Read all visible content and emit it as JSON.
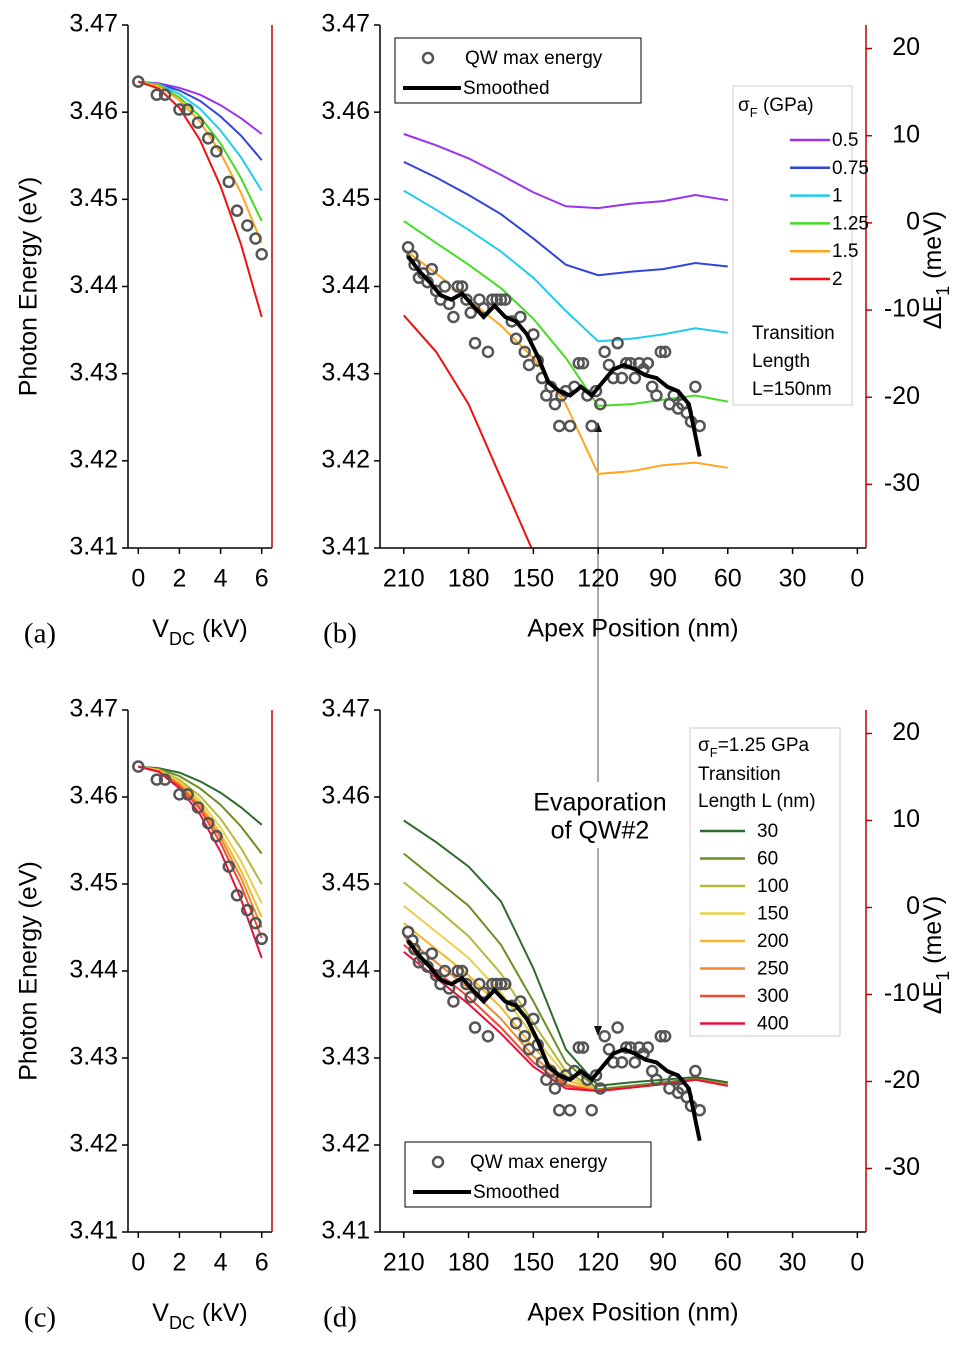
{
  "chart_data": [
    {
      "type": "line",
      "panel_label": "(a)",
      "y_label": "Photon Energy (eV)",
      "x_label": [
        "V",
        "DC",
        " (kV)"
      ],
      "xlim": [
        -0.5,
        6.5
      ],
      "xticks": [
        0,
        2,
        4,
        6
      ],
      "ylim": [
        3.41,
        3.47
      ],
      "yticks": [
        3.41,
        3.42,
        3.43,
        3.44,
        3.45,
        3.46,
        3.47
      ],
      "x": [
        0,
        1,
        2,
        3,
        4,
        5,
        6
      ],
      "series": [
        {
          "color": "#9933ee",
          "values": [
            3.4635,
            3.4633,
            3.4628,
            3.462,
            3.4608,
            3.4593,
            3.4575
          ]
        },
        {
          "color": "#3344dd",
          "values": [
            3.4635,
            3.4632,
            3.4625,
            3.4613,
            3.4595,
            3.4573,
            3.4545
          ]
        },
        {
          "color": "#22ccee",
          "values": [
            3.4635,
            3.4632,
            3.4621,
            3.4604,
            3.4579,
            3.4548,
            3.451
          ]
        },
        {
          "color": "#44dd22",
          "values": [
            3.4635,
            3.4631,
            3.4617,
            3.4595,
            3.4564,
            3.4524,
            3.4475
          ]
        },
        {
          "color": "#ffa520",
          "values": [
            3.4635,
            3.463,
            3.4614,
            3.4589,
            3.4553,
            3.4507,
            3.445
          ]
        },
        {
          "color": "#ee1111",
          "values": [
            3.4635,
            3.4627,
            3.4605,
            3.4568,
            3.4515,
            3.4448,
            3.4365
          ]
        }
      ],
      "markers": {
        "color": "#555555",
        "x": [
          0,
          0.9,
          1.3,
          2,
          2.4,
          2.9,
          3.4,
          3.8,
          4.4,
          4.8,
          5.3,
          5.7,
          6.0
        ],
        "values": [
          3.4635,
          3.462,
          3.462,
          3.4603,
          3.4603,
          3.4588,
          3.457,
          3.4555,
          3.452,
          3.4487,
          3.447,
          3.4455,
          3.4437
        ]
      }
    },
    {
      "type": "line",
      "panel_label": "(b)",
      "x_label": "Apex Position (nm)",
      "y2_label": [
        "ΔE",
        "1",
        " (meV)"
      ],
      "xlim": [
        221,
        -4
      ],
      "xticks": [
        210,
        180,
        150,
        120,
        90,
        60,
        30,
        0
      ],
      "ylim": [
        3.41,
        3.47
      ],
      "yticks": [
        3.41,
        3.42,
        3.43,
        3.44,
        3.45,
        3.46,
        3.47
      ],
      "y2lim": [
        -37.3,
        22.7
      ],
      "y2ticks": [
        -30,
        -20,
        -10,
        0,
        10,
        20
      ],
      "legend_title": [
        "σ",
        "F",
        " (GPa)"
      ],
      "legend_note": [
        "Transition",
        "Length",
        "L=150nm"
      ],
      "x": [
        210,
        195,
        180,
        165,
        150,
        135,
        120,
        105,
        90,
        75,
        60
      ],
      "series": [
        {
          "name": "0.5",
          "color": "#9933ee",
          "values": [
            3.4575,
            3.4562,
            3.4547,
            3.4528,
            3.4508,
            3.4492,
            3.449,
            3.4495,
            3.4498,
            3.4505,
            3.4499
          ]
        },
        {
          "name": "0.75",
          "color": "#3344dd",
          "values": [
            3.4543,
            3.4525,
            3.4505,
            3.4483,
            3.4455,
            3.4425,
            3.4413,
            3.4417,
            3.442,
            3.4427,
            3.4423
          ]
        },
        {
          "name": "1",
          "color": "#22ccee",
          "values": [
            3.451,
            3.4488,
            3.4465,
            3.444,
            3.441,
            3.4372,
            3.4337,
            3.434,
            3.4345,
            3.4352,
            3.4347
          ]
        },
        {
          "name": "1.25",
          "color": "#44dd22",
          "values": [
            3.4475,
            3.445,
            3.4425,
            3.4398,
            3.4363,
            3.4318,
            3.4263,
            3.4265,
            3.427,
            3.4275,
            3.4268
          ]
        },
        {
          "name": "1.5",
          "color": "#ffa520",
          "values": [
            3.4443,
            3.4415,
            3.4385,
            3.4355,
            3.4318,
            3.4265,
            3.4185,
            3.4188,
            3.4195,
            3.4198,
            3.4192
          ]
        },
        {
          "name": "2",
          "color": "#ee1111",
          "values": [
            3.4367,
            3.4325,
            3.4265,
            3.418,
            3.4095,
            null,
            null,
            null,
            null,
            null,
            null
          ]
        }
      ],
      "markers": {
        "name": "QW max energy",
        "color": "#555555",
        "x": [
          208,
          206,
          205,
          203,
          201,
          199,
          197,
          195,
          193,
          191,
          189,
          187,
          185,
          183,
          181,
          179,
          177,
          175,
          173,
          171,
          169,
          167,
          165,
          163,
          160,
          158,
          156,
          154,
          152,
          150,
          148,
          146,
          144,
          142,
          140,
          138,
          137,
          135,
          133,
          131,
          129,
          127,
          125,
          123,
          121,
          119,
          117,
          115,
          113,
          111,
          109,
          107,
          105,
          103,
          101,
          99,
          97,
          95,
          93,
          91,
          89,
          87,
          85,
          83,
          81,
          79,
          77,
          75,
          73
        ],
        "values": [
          3.4445,
          3.4435,
          3.4425,
          3.441,
          3.4415,
          3.4405,
          3.442,
          3.4395,
          3.4385,
          3.44,
          3.438,
          3.4365,
          3.44,
          3.44,
          3.4385,
          3.437,
          3.4335,
          3.4385,
          3.4375,
          3.4325,
          3.4385,
          3.4385,
          3.4385,
          3.4385,
          3.436,
          3.434,
          3.4365,
          3.4325,
          3.431,
          3.4345,
          3.4315,
          3.4295,
          3.4275,
          3.4285,
          3.4265,
          3.424,
          3.4275,
          3.428,
          3.424,
          3.4285,
          3.4312,
          3.4312,
          3.4275,
          3.424,
          3.428,
          3.4265,
          3.4325,
          3.431,
          3.4295,
          3.4335,
          3.4295,
          3.4312,
          3.4312,
          3.4295,
          3.4312,
          3.4305,
          3.4312,
          3.4285,
          3.4275,
          3.4325,
          3.4325,
          3.4265,
          3.4275,
          3.426,
          3.4265,
          3.4255,
          3.4245,
          3.4285,
          3.424
        ]
      },
      "smoothed": {
        "name": "Smoothed",
        "color": "#000000",
        "x": [
          208,
          203,
          198,
          193,
          188,
          183,
          178,
          173,
          168,
          163,
          158,
          153,
          148,
          143,
          138,
          133,
          128,
          123,
          118,
          113,
          108,
          103,
          98,
          93,
          88,
          83,
          78,
          73
        ],
        "values": [
          3.4435,
          3.4418,
          3.4405,
          3.439,
          3.4385,
          3.4392,
          3.4378,
          3.4365,
          3.4378,
          3.4365,
          3.436,
          3.4345,
          3.432,
          3.429,
          3.428,
          3.4275,
          3.4285,
          3.4275,
          3.429,
          3.4305,
          3.431,
          3.4305,
          3.4298,
          3.4295,
          3.4285,
          3.428,
          3.4265,
          3.4205
        ]
      }
    },
    {
      "type": "line",
      "panel_label": "(c)",
      "y_label": "Photon Energy (eV)",
      "x_label": [
        "V",
        "DC",
        " (kV)"
      ],
      "xlim": [
        -0.5,
        6.5
      ],
      "xticks": [
        0,
        2,
        4,
        6
      ],
      "ylim": [
        3.41,
        3.47
      ],
      "yticks": [
        3.41,
        3.42,
        3.43,
        3.44,
        3.45,
        3.46,
        3.47
      ],
      "x": [
        0,
        1,
        2,
        3,
        4,
        5,
        6
      ],
      "series": [
        {
          "color": "#2e6b2e",
          "values": [
            3.4635,
            3.4633,
            3.4628,
            3.4618,
            3.4605,
            3.4588,
            3.4568
          ]
        },
        {
          "color": "#6b8e23",
          "values": [
            3.4635,
            3.4632,
            3.4624,
            3.461,
            3.4591,
            3.4566,
            3.4535
          ]
        },
        {
          "color": "#b5b83a",
          "values": [
            3.4635,
            3.4631,
            3.462,
            3.4601,
            3.4575,
            3.4541,
            3.45
          ]
        },
        {
          "color": "#e8d04a",
          "values": [
            3.4635,
            3.4631,
            3.4618,
            3.4596,
            3.4565,
            3.4526,
            3.4478
          ]
        },
        {
          "color": "#f5b72e",
          "values": [
            3.4635,
            3.463,
            3.4616,
            3.4592,
            3.4558,
            3.4515,
            3.4462
          ]
        },
        {
          "color": "#f08a30",
          "values": [
            3.4635,
            3.463,
            3.4614,
            3.4589,
            3.4553,
            3.4507,
            3.445
          ]
        },
        {
          "color": "#f04a30",
          "values": [
            3.4635,
            3.4629,
            3.4613,
            3.4586,
            3.4547,
            3.4498,
            3.4438
          ]
        },
        {
          "color": "#e8103a",
          "values": [
            3.4635,
            3.4629,
            3.461,
            3.458,
            3.4537,
            3.4482,
            3.4415
          ]
        }
      ],
      "markers": {
        "color": "#555555",
        "x": [
          0,
          0.9,
          1.3,
          2,
          2.4,
          2.9,
          3.4,
          3.8,
          4.4,
          4.8,
          5.3,
          5.7,
          6.0
        ],
        "values": [
          3.4635,
          3.462,
          3.462,
          3.4603,
          3.4603,
          3.4588,
          3.457,
          3.4555,
          3.452,
          3.4487,
          3.447,
          3.4455,
          3.4437
        ]
      }
    },
    {
      "type": "line",
      "panel_label": "(d)",
      "x_label": "Apex Position (nm)",
      "y2_label": [
        "ΔE",
        "1",
        " (meV)"
      ],
      "annotation": [
        "Evaporation",
        "of QW#2"
      ],
      "xlim": [
        221,
        -4
      ],
      "xticks": [
        210,
        180,
        150,
        120,
        90,
        60,
        30,
        0
      ],
      "ylim": [
        3.41,
        3.47
      ],
      "yticks": [
        3.41,
        3.42,
        3.43,
        3.44,
        3.45,
        3.46,
        3.47
      ],
      "y2lim": [
        -37.3,
        22.7
      ],
      "y2ticks": [
        -30,
        -20,
        -10,
        0,
        10,
        20
      ],
      "legend_title": [
        "σ",
        "F",
        "=1.25 GPa"
      ],
      "legend_note": [
        "Transition",
        "Length L (nm)"
      ],
      "x": [
        210,
        195,
        180,
        165,
        150,
        135,
        120,
        105,
        90,
        75,
        60
      ],
      "series": [
        {
          "name": "30",
          "color": "#2e6b2e",
          "values": [
            3.4573,
            3.4548,
            3.452,
            3.448,
            3.4403,
            3.431,
            3.4268,
            3.4272,
            3.4275,
            3.4278,
            3.4272
          ]
        },
        {
          "name": "60",
          "color": "#6b8e23",
          "values": [
            3.4535,
            3.4505,
            3.4475,
            3.443,
            3.4365,
            3.4295,
            3.4264,
            3.4268,
            3.4272,
            3.4276,
            3.427
          ]
        },
        {
          "name": "100",
          "color": "#b5b83a",
          "values": [
            3.4502,
            3.4472,
            3.444,
            3.4397,
            3.434,
            3.4285,
            3.4262,
            3.4266,
            3.427,
            3.4275,
            3.4269
          ]
        },
        {
          "name": "150",
          "color": "#e8d04a",
          "values": [
            3.4475,
            3.4445,
            3.4415,
            3.4375,
            3.4325,
            3.428,
            3.4262,
            3.4266,
            3.427,
            3.4275,
            3.4268
          ]
        },
        {
          "name": "200",
          "color": "#f5b72e",
          "values": [
            3.4455,
            3.4425,
            3.4395,
            3.4358,
            3.4312,
            3.4275,
            3.4262,
            3.4266,
            3.427,
            3.4275,
            3.4268
          ]
        },
        {
          "name": "250",
          "color": "#f08a30",
          "values": [
            3.444,
            3.441,
            3.438,
            3.4345,
            3.4302,
            3.427,
            3.4262,
            3.4266,
            3.427,
            3.4275,
            3.4268
          ]
        },
        {
          "name": "300",
          "color": "#f04a30",
          "values": [
            3.443,
            3.44,
            3.437,
            3.4335,
            3.4295,
            3.4268,
            3.4262,
            3.4266,
            3.427,
            3.4275,
            3.4268
          ]
        },
        {
          "name": "400",
          "color": "#e8103a",
          "values": [
            3.4422,
            3.4392,
            3.4362,
            3.4328,
            3.429,
            3.4265,
            3.4262,
            3.4266,
            3.427,
            3.4275,
            3.4268
          ]
        }
      ],
      "markers": {
        "name": "QW max energy",
        "color": "#555555",
        "x": [
          208,
          206,
          205,
          203,
          201,
          199,
          197,
          195,
          193,
          191,
          189,
          187,
          185,
          183,
          181,
          179,
          177,
          175,
          173,
          171,
          169,
          167,
          165,
          163,
          160,
          158,
          156,
          154,
          152,
          150,
          148,
          146,
          144,
          142,
          140,
          138,
          137,
          135,
          133,
          131,
          129,
          127,
          125,
          123,
          121,
          119,
          117,
          115,
          113,
          111,
          109,
          107,
          105,
          103,
          101,
          99,
          97,
          95,
          93,
          91,
          89,
          87,
          85,
          83,
          81,
          79,
          77,
          75,
          73
        ],
        "values": [
          3.4445,
          3.4435,
          3.4425,
          3.441,
          3.4415,
          3.4405,
          3.442,
          3.4395,
          3.4385,
          3.44,
          3.438,
          3.4365,
          3.44,
          3.44,
          3.4385,
          3.437,
          3.4335,
          3.4385,
          3.4375,
          3.4325,
          3.4385,
          3.4385,
          3.4385,
          3.4385,
          3.436,
          3.434,
          3.4365,
          3.4325,
          3.431,
          3.4345,
          3.4315,
          3.4295,
          3.4275,
          3.4285,
          3.4265,
          3.424,
          3.4275,
          3.428,
          3.424,
          3.4285,
          3.4312,
          3.4312,
          3.4275,
          3.424,
          3.428,
          3.4265,
          3.4325,
          3.431,
          3.4295,
          3.4335,
          3.4295,
          3.4312,
          3.4312,
          3.4295,
          3.4312,
          3.4305,
          3.4312,
          3.4285,
          3.4275,
          3.4325,
          3.4325,
          3.4265,
          3.4275,
          3.426,
          3.4265,
          3.4255,
          3.4245,
          3.4285,
          3.424
        ]
      },
      "smoothed": {
        "name": "Smoothed",
        "color": "#000000",
        "x": [
          208,
          203,
          198,
          193,
          188,
          183,
          178,
          173,
          168,
          163,
          158,
          153,
          148,
          143,
          138,
          133,
          128,
          123,
          118,
          113,
          108,
          103,
          98,
          93,
          88,
          83,
          78,
          73
        ],
        "values": [
          3.4435,
          3.4418,
          3.4405,
          3.439,
          3.4385,
          3.4392,
          3.4378,
          3.4365,
          3.4378,
          3.4365,
          3.436,
          3.4345,
          3.432,
          3.429,
          3.428,
          3.4275,
          3.4285,
          3.4275,
          3.429,
          3.4305,
          3.431,
          3.4305,
          3.4298,
          3.4295,
          3.4285,
          3.428,
          3.4265,
          3.4205
        ]
      }
    }
  ]
}
